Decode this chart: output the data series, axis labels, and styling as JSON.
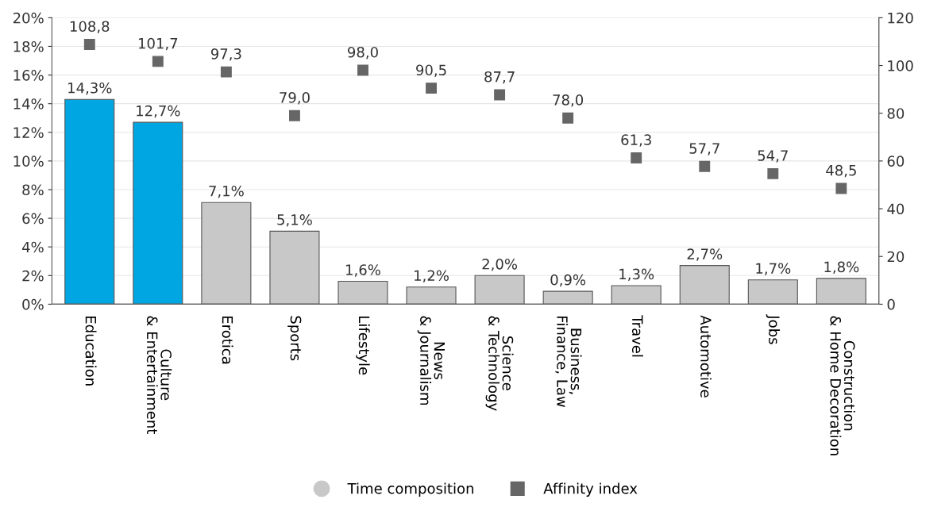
{
  "chart_data": {
    "type": "bar",
    "categories": [
      "Education",
      "Culture\n& Entertainment",
      "Erotica",
      "Sports",
      "Lifestyle",
      "News\n& Journalism",
      "Science\n& Technology",
      "Business,\nFinance, Law",
      "Travel",
      "Automotive",
      "Jobs",
      "Construction\n& Home Decoration"
    ],
    "series": [
      {
        "name": "Time composition",
        "color": "#c8c8c8",
        "colors": [
          "#00a6e2",
          "#00a6e2",
          "#c8c8c8",
          "#c8c8c8",
          "#c8c8c8",
          "#c8c8c8",
          "#c8c8c8",
          "#c8c8c8",
          "#c8c8c8",
          "#c8c8c8",
          "#c8c8c8",
          "#c8c8c8"
        ],
        "values": [
          14.3,
          12.7,
          7.1,
          5.1,
          1.6,
          1.2,
          2.0,
          0.9,
          1.3,
          2.7,
          1.7,
          1.8
        ],
        "value_labels": [
          "14,3%",
          "12,7%",
          "7,1%",
          "5,1%",
          "1,6%",
          "1,2%",
          "2,0%",
          "0,9%",
          "1,3%",
          "2,7%",
          "1,7%",
          "1,8%"
        ]
      },
      {
        "name": "Affinity index",
        "type": "scatter",
        "axis": "y2",
        "color": "#666666",
        "values": [
          108.8,
          101.7,
          97.3,
          79.0,
          98.0,
          90.5,
          87.7,
          78.0,
          61.3,
          57.7,
          54.7,
          48.5
        ],
        "value_labels": [
          "108,8",
          "101,7",
          "97,3",
          "79,0",
          "98,0",
          "90,5",
          "87,7",
          "78,0",
          "61,3",
          "57,7",
          "54,7",
          "48,5"
        ]
      }
    ],
    "ylim": [
      0,
      20
    ],
    "yticks": [
      {
        "value": 0,
        "label": "0%"
      },
      {
        "value": 2,
        "label": "2%"
      },
      {
        "value": 4,
        "label": "4%"
      },
      {
        "value": 6,
        "label": "6%"
      },
      {
        "value": 8,
        "label": "8%"
      },
      {
        "value": 10,
        "label": "10%"
      },
      {
        "value": 12,
        "label": "12%"
      },
      {
        "value": 14,
        "label": "14%"
      },
      {
        "value": 16,
        "label": "16%"
      },
      {
        "value": 18,
        "label": "18%"
      },
      {
        "value": 20,
        "label": "20%"
      }
    ],
    "y2lim": [
      0,
      120
    ],
    "y2ticks": [
      0,
      20,
      40,
      60,
      80,
      100,
      120
    ],
    "grid": "y",
    "legend": "bottom",
    "marker": "square"
  }
}
